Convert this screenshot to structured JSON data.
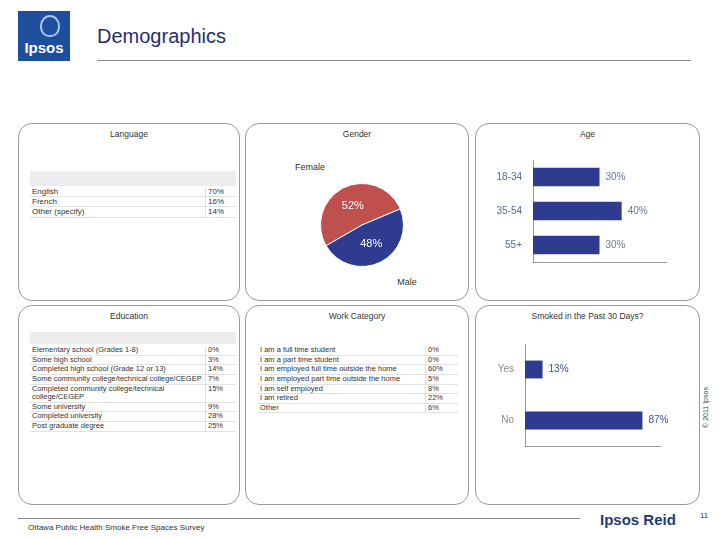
{
  "header": {
    "logo": "Ipsos",
    "title": "Demographics"
  },
  "language": {
    "title": "Language",
    "rows": [
      [
        "English",
        "70%"
      ],
      [
        "French",
        "16%"
      ],
      [
        "Other (specify)",
        "14%"
      ]
    ]
  },
  "education": {
    "title": "Education",
    "rows": [
      [
        "Elementary school (Grades 1-8)",
        "0%"
      ],
      [
        "Some high school",
        "3%"
      ],
      [
        "Completed high school (Grade 12 or 13)",
        "14%"
      ],
      [
        "Some community college/technical college/CEGEP",
        "7%"
      ],
      [
        "Completed community college/technical college/CEGEP",
        "15%"
      ],
      [
        "Some university",
        "9%"
      ],
      [
        "Completed university",
        "28%"
      ],
      [
        "Post graduate degree",
        "25%"
      ]
    ]
  },
  "work_category": {
    "title": "Work Category",
    "rows": [
      [
        "I am a full time student",
        "0%"
      ],
      [
        "I am a part time student",
        "0%"
      ],
      [
        "I am employed full time outside the home",
        "60%"
      ],
      [
        "I am employed part time outside the home",
        "5%"
      ],
      [
        "I am self employed",
        "8%"
      ],
      [
        "I am retired",
        "22%"
      ],
      [
        "Other",
        "6%"
      ]
    ]
  },
  "chart_data": [
    {
      "type": "pie",
      "title": "Gender",
      "categories": [
        "Female",
        "Male"
      ],
      "values": [
        52,
        48
      ],
      "value_labels": [
        "52%",
        "48%"
      ],
      "colors": [
        "#c0504d",
        "#2e3b8f"
      ],
      "data_labels": true
    },
    {
      "type": "bar",
      "title": "Age",
      "orientation": "horizontal",
      "categories": [
        "18-34",
        "35-54",
        "55+"
      ],
      "values": [
        30,
        40,
        30
      ],
      "value_labels": [
        "30%",
        "40%",
        "30%"
      ],
      "color": "#2e3b8f",
      "xlim": [
        0,
        60
      ],
      "grid": false,
      "tick_labels": "y",
      "data_labels": true
    },
    {
      "type": "bar",
      "title": "Smoked in the Past 30 Days?",
      "orientation": "horizontal",
      "categories": [
        "Yes",
        "No"
      ],
      "values": [
        13,
        87
      ],
      "value_labels": [
        "13%",
        "87%"
      ],
      "color": "#2e3b8f",
      "xlim": [
        0,
        100
      ],
      "grid": false,
      "tick_labels": "y",
      "data_labels": true
    }
  ],
  "footer": {
    "survey": "Ottawa Public Health Smoke Free Spaces Survey",
    "brand": "Ipsos Reid",
    "page": "11",
    "copyright": "© 2011 Ipsos"
  }
}
